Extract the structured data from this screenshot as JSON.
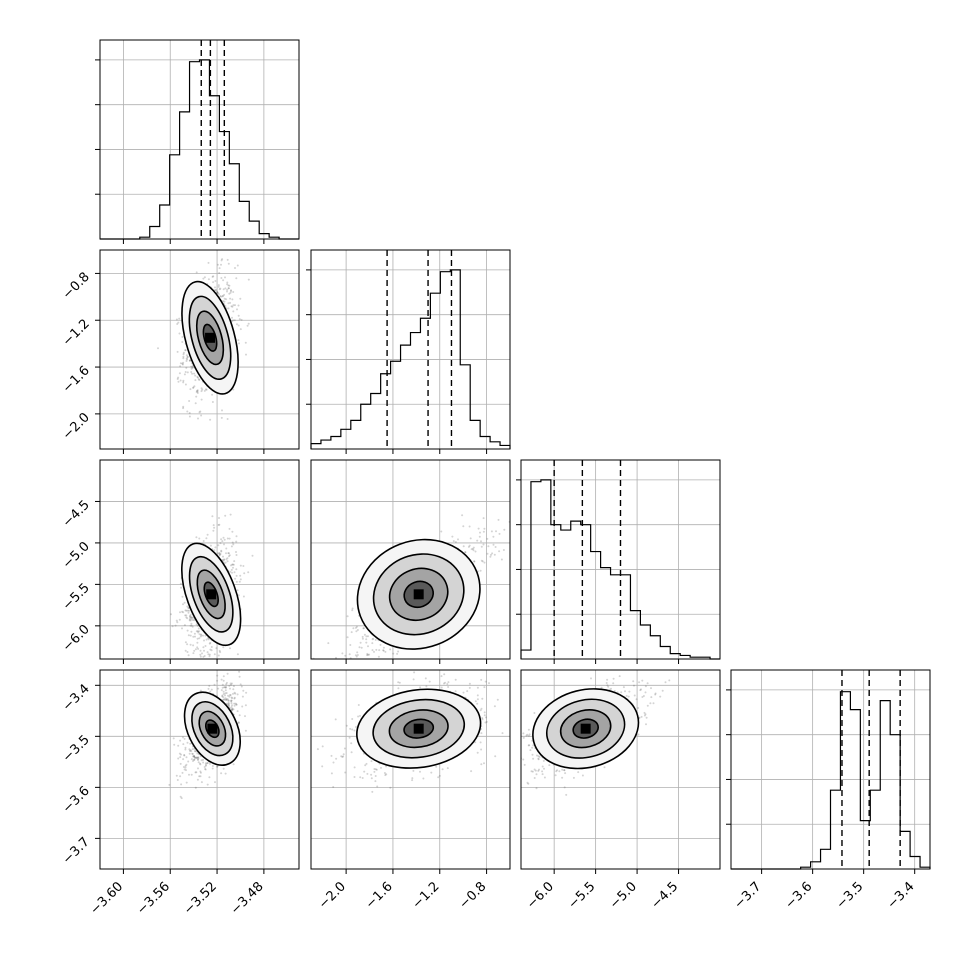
{
  "chart_data": {
    "type": "corner",
    "title": "",
    "grid": true,
    "colors": {
      "frame": "#000000",
      "grid": "#b0b0b0",
      "points": "#555555",
      "quantile": "#000000"
    },
    "parameters": [
      {
        "range": [
          -3.62,
          -3.45
        ],
        "x_ticks": [
          -3.6,
          -3.56,
          -3.52,
          -3.48
        ],
        "x_tick_labels": [
          "−3.60",
          "−3.56",
          "−3.52",
          "−3.48"
        ],
        "y_ticks": [],
        "y_tick_labels": [],
        "quantiles": [
          -3.5335,
          -3.5257,
          -3.5138
        ],
        "histogram": [
          0,
          0,
          0,
          0,
          0.01,
          0.07,
          0.19,
          0.47,
          0.71,
          0.99,
          1.0,
          0.8,
          0.6,
          0.42,
          0.21,
          0.1,
          0.03,
          0.01,
          0,
          0
        ]
      },
      {
        "range": [
          -2.3,
          -0.6
        ],
        "x_ticks": [
          -2.0,
          -1.6,
          -1.2,
          -0.8
        ],
        "x_tick_labels": [
          "−2.0",
          "−1.6",
          "−1.2",
          "−0.8"
        ],
        "y_ticks": [
          -0.8,
          -1.2,
          -1.6,
          -2.0
        ],
        "y_tick_labels": [
          "−0.8",
          "−1.2",
          "−1.6",
          "−2.0"
        ],
        "quantiles": [
          -1.65,
          -1.3,
          -1.1
        ],
        "histogram": [
          0.03,
          0.05,
          0.07,
          0.11,
          0.16,
          0.25,
          0.31,
          0.42,
          0.49,
          0.58,
          0.65,
          0.73,
          0.87,
          0.99,
          1.0,
          0.47,
          0.16,
          0.07,
          0.04,
          0.02
        ]
      },
      {
        "range": [
          -6.4,
          -4.0
        ],
        "x_ticks": [
          -6.0,
          -5.5,
          -5.0,
          -4.5
        ],
        "x_tick_labels": [
          "−6.0",
          "−5.5",
          "−5.0",
          "−4.5"
        ],
        "y_ticks": [
          -4.5,
          -5.0,
          -5.5,
          -6.0
        ],
        "y_tick_labels": [
          "−4.5",
          "−5.0",
          "−5.5",
          "−6.0"
        ],
        "quantiles": [
          -6.0,
          -5.66,
          -5.2
        ],
        "histogram": [
          0.05,
          0.99,
          1.0,
          0.75,
          0.72,
          0.77,
          0.75,
          0.6,
          0.51,
          0.47,
          0.47,
          0.27,
          0.19,
          0.13,
          0.07,
          0.03,
          0.02,
          0.01,
          0.01,
          0.0
        ]
      },
      {
        "range": [
          -3.76,
          -3.37
        ],
        "x_ticks": [
          -3.7,
          -3.6,
          -3.5,
          -3.4
        ],
        "x_tick_labels": [
          "−3.7",
          "−3.6",
          "−3.5",
          "−3.4"
        ],
        "y_ticks": [
          -3.4,
          -3.5,
          -3.6,
          -3.7
        ],
        "y_tick_labels": [
          "−3.4",
          "−3.5",
          "−3.6",
          "−3.7"
        ],
        "quantiles": [
          -3.5425,
          -3.4892,
          -3.4285
        ],
        "histogram": [
          0,
          0,
          0,
          0,
          0,
          0,
          0,
          0.01,
          0.04,
          0.11,
          0.44,
          0.99,
          0.89,
          0.27,
          0.44,
          0.94,
          0.75,
          0.21,
          0.07,
          0.01
        ]
      }
    ],
    "pairs": [
      {
        "row": 1,
        "col": 0,
        "center": [
          -3.526,
          -1.35
        ],
        "sd": [
          0.011,
          0.26
        ],
        "corr": 0.2
      },
      {
        "row": 2,
        "col": 0,
        "center": [
          -3.525,
          -5.62
        ],
        "sd": [
          0.011,
          0.34
        ],
        "corr": 0.3
      },
      {
        "row": 2,
        "col": 1,
        "center": [
          -1.38,
          -5.62
        ],
        "sd": [
          0.28,
          0.34
        ],
        "corr": 0.8
      },
      {
        "row": 3,
        "col": 0,
        "center": [
          -3.524,
          -3.485
        ],
        "sd": [
          0.011,
          0.04
        ],
        "corr": 0.6
      },
      {
        "row": 3,
        "col": 1,
        "center": [
          -1.38,
          -3.485
        ],
        "sd": [
          0.28,
          0.04
        ],
        "corr": 0.4
      },
      {
        "row": 3,
        "col": 2,
        "center": [
          -5.62,
          -3.485
        ],
        "sd": [
          0.34,
          0.04
        ],
        "corr": 0.6
      }
    ]
  }
}
